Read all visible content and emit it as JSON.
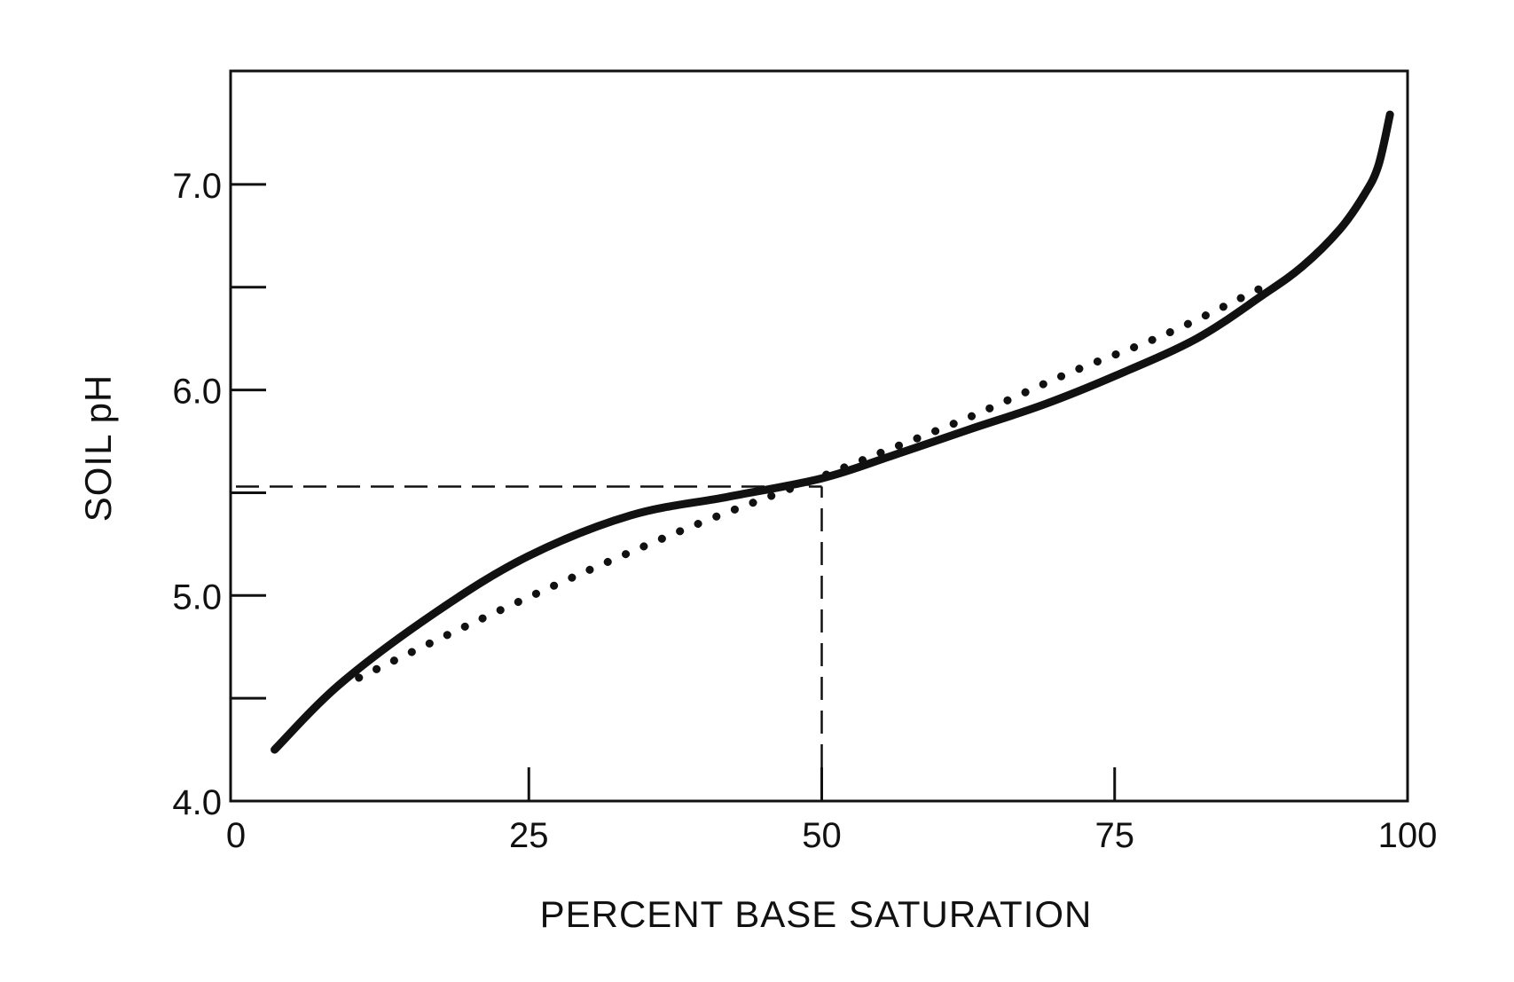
{
  "chart_data": {
    "type": "line",
    "title": "",
    "xlabel": "PERCENT BASE SATURATION",
    "ylabel": "SOIL pH",
    "xlim": [
      0,
      100
    ],
    "ylim": [
      4.0,
      7.5
    ],
    "x_ticks": [
      0,
      25,
      50,
      75,
      100
    ],
    "x_tick_labels": [
      "0",
      "25",
      "50",
      "75",
      "100"
    ],
    "y_ticks": [
      4.0,
      4.5,
      5.0,
      5.5,
      6.0,
      6.5,
      7.0
    ],
    "y_tick_labels": [
      "4.0",
      "",
      "5.0",
      "",
      "6.0",
      "",
      "7.0"
    ],
    "grid": false,
    "series": [
      {
        "style": "solid",
        "color": "#111111",
        "x": [
          3.3,
          8.9,
          17.1,
          24.9,
          33.7,
          42,
          50,
          56,
          62.7,
          69,
          75.1,
          82,
          87.6,
          91,
          94.2,
          96.3,
          97.5,
          98.5
        ],
        "y": [
          4.25,
          4.57,
          4.92,
          5.19,
          5.39,
          5.48,
          5.57,
          5.68,
          5.81,
          5.93,
          6.07,
          6.25,
          6.46,
          6.6,
          6.78,
          6.95,
          7.09,
          7.34
        ]
      },
      {
        "style": "dotted",
        "color": "#111111",
        "x": [
          10.5,
          19.6,
          29.6,
          39.5,
          47.8,
          54.4,
          62.7,
          71,
          79.3,
          87.3
        ],
        "y": [
          4.6,
          4.85,
          5.11,
          5.35,
          5.53,
          5.68,
          5.87,
          6.08,
          6.27,
          6.49
        ]
      }
    ],
    "reference_lines": [
      {
        "style": "dashed",
        "x": [
          0,
          50
        ],
        "y": [
          5.53,
          5.53
        ]
      },
      {
        "style": "dashed",
        "x": [
          50,
          50
        ],
        "y": [
          4.0,
          5.53
        ]
      }
    ]
  }
}
